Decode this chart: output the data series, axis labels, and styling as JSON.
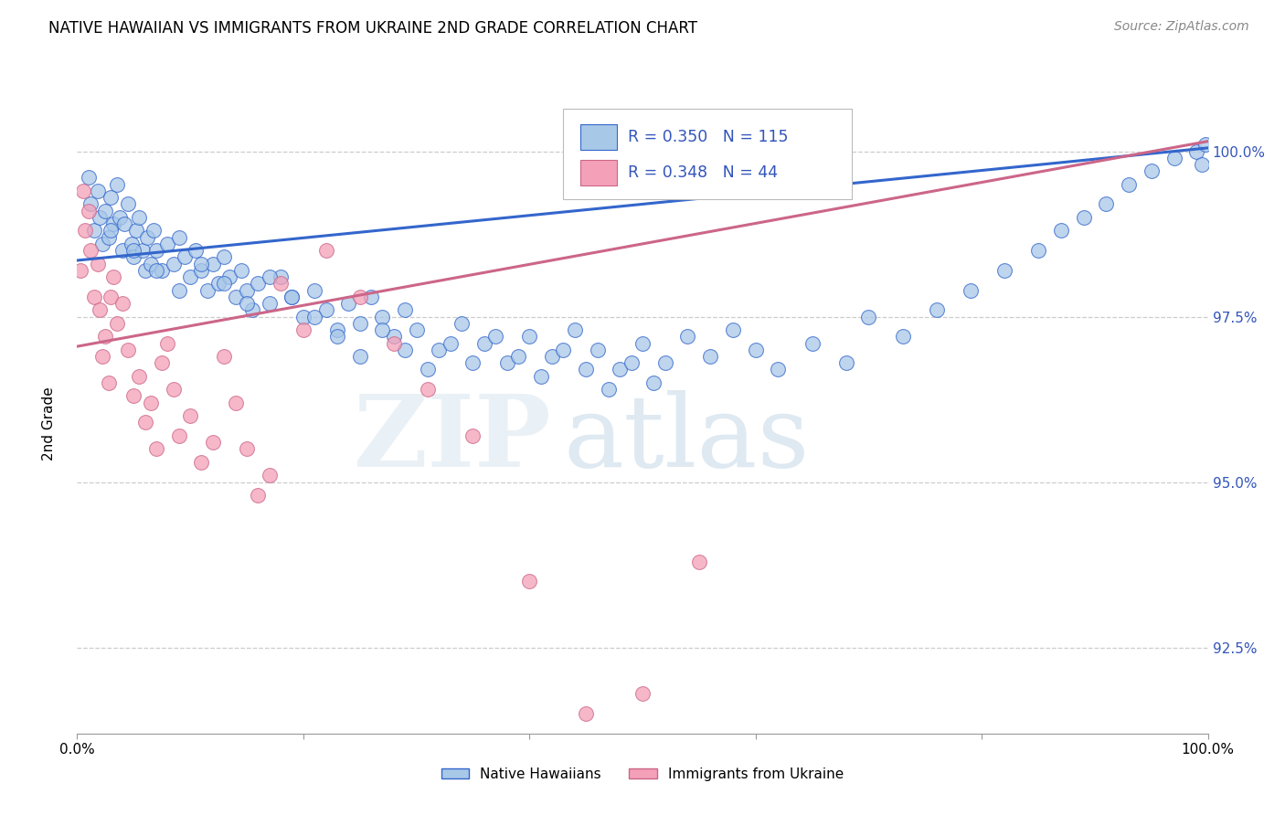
{
  "title": "NATIVE HAWAIIAN VS IMMIGRANTS FROM UKRAINE 2ND GRADE CORRELATION CHART",
  "source": "Source: ZipAtlas.com",
  "ylabel": "2nd Grade",
  "xlim": [
    0,
    100
  ],
  "ylim": [
    91.2,
    101.3
  ],
  "yticks": [
    92.5,
    95.0,
    97.5,
    100.0
  ],
  "xticks": [
    0,
    20,
    40,
    60,
    80,
    100
  ],
  "xtick_labels": [
    "0.0%",
    "",
    "",
    "",
    "",
    "100.0%"
  ],
  "ytick_labels": [
    "92.5%",
    "95.0%",
    "97.5%",
    "100.0%"
  ],
  "blue_R": 0.35,
  "blue_N": 115,
  "pink_R": 0.348,
  "pink_N": 44,
  "blue_color": "#a8c8e8",
  "pink_color": "#f4a0b8",
  "blue_line_color": "#3366cc",
  "pink_line_color": "#cc6688",
  "legend_label_blue": "Native Hawaiians",
  "legend_label_pink": "Immigrants from Ukraine",
  "blue_line_x0": 0,
  "blue_line_x1": 100,
  "blue_line_y0": 98.35,
  "blue_line_y1": 100.05,
  "pink_line_x0": 0,
  "pink_line_x1": 100,
  "pink_line_y0": 97.05,
  "pink_line_y1": 100.15,
  "blue_pts_x": [
    1.0,
    1.2,
    1.5,
    1.8,
    2.0,
    2.2,
    2.5,
    2.8,
    3.0,
    3.2,
    3.5,
    3.8,
    4.0,
    4.2,
    4.5,
    4.8,
    5.0,
    5.2,
    5.5,
    5.8,
    6.0,
    6.2,
    6.5,
    6.8,
    7.0,
    7.5,
    8.0,
    8.5,
    9.0,
    9.5,
    10.0,
    10.5,
    11.0,
    11.5,
    12.0,
    12.5,
    13.0,
    13.5,
    14.0,
    14.5,
    15.0,
    15.5,
    16.0,
    17.0,
    18.0,
    19.0,
    20.0,
    21.0,
    22.0,
    23.0,
    24.0,
    25.0,
    26.0,
    27.0,
    28.0,
    29.0,
    30.0,
    32.0,
    34.0,
    36.0,
    38.0,
    40.0,
    42.0,
    44.0,
    46.0,
    48.0,
    50.0,
    52.0,
    54.0,
    56.0,
    58.0,
    60.0,
    62.0,
    65.0,
    68.0,
    70.0,
    73.0,
    76.0,
    79.0,
    82.0,
    85.0,
    87.0,
    89.0,
    91.0,
    93.0,
    95.0,
    97.0,
    99.0,
    99.5,
    99.8,
    3.0,
    5.0,
    7.0,
    9.0,
    11.0,
    13.0,
    15.0,
    17.0,
    19.0,
    21.0,
    23.0,
    25.0,
    27.0,
    29.0,
    31.0,
    33.0,
    35.0,
    37.0,
    39.0,
    41.0,
    43.0,
    45.0,
    47.0,
    49.0,
    51.0
  ],
  "blue_pts_y": [
    99.6,
    99.2,
    98.8,
    99.4,
    99.0,
    98.6,
    99.1,
    98.7,
    99.3,
    98.9,
    99.5,
    99.0,
    98.5,
    98.9,
    99.2,
    98.6,
    98.4,
    98.8,
    99.0,
    98.5,
    98.2,
    98.7,
    98.3,
    98.8,
    98.5,
    98.2,
    98.6,
    98.3,
    98.7,
    98.4,
    98.1,
    98.5,
    98.2,
    97.9,
    98.3,
    98.0,
    98.4,
    98.1,
    97.8,
    98.2,
    97.9,
    97.6,
    98.0,
    97.7,
    98.1,
    97.8,
    97.5,
    97.9,
    97.6,
    97.3,
    97.7,
    97.4,
    97.8,
    97.5,
    97.2,
    97.6,
    97.3,
    97.0,
    97.4,
    97.1,
    96.8,
    97.2,
    96.9,
    97.3,
    97.0,
    96.7,
    97.1,
    96.8,
    97.2,
    96.9,
    97.3,
    97.0,
    96.7,
    97.1,
    96.8,
    97.5,
    97.2,
    97.6,
    97.9,
    98.2,
    98.5,
    98.8,
    99.0,
    99.2,
    99.5,
    99.7,
    99.9,
    100.0,
    99.8,
    100.1,
    98.8,
    98.5,
    98.2,
    97.9,
    98.3,
    98.0,
    97.7,
    98.1,
    97.8,
    97.5,
    97.2,
    96.9,
    97.3,
    97.0,
    96.7,
    97.1,
    96.8,
    97.2,
    96.9,
    96.6,
    97.0,
    96.7,
    96.4,
    96.8,
    96.5
  ],
  "pink_pts_x": [
    0.3,
    0.5,
    0.7,
    1.0,
    1.2,
    1.5,
    1.8,
    2.0,
    2.2,
    2.5,
    2.8,
    3.0,
    3.2,
    3.5,
    4.0,
    4.5,
    5.0,
    5.5,
    6.0,
    6.5,
    7.0,
    7.5,
    8.0,
    8.5,
    9.0,
    10.0,
    11.0,
    12.0,
    13.0,
    14.0,
    15.0,
    16.0,
    17.0,
    18.0,
    20.0,
    22.0,
    25.0,
    28.0,
    31.0,
    35.0,
    40.0,
    45.0,
    50.0,
    55.0
  ],
  "pink_pts_y": [
    98.2,
    99.4,
    98.8,
    99.1,
    98.5,
    97.8,
    98.3,
    97.6,
    96.9,
    97.2,
    96.5,
    97.8,
    98.1,
    97.4,
    97.7,
    97.0,
    96.3,
    96.6,
    95.9,
    96.2,
    95.5,
    96.8,
    97.1,
    96.4,
    95.7,
    96.0,
    95.3,
    95.6,
    96.9,
    96.2,
    95.5,
    94.8,
    95.1,
    98.0,
    97.3,
    98.5,
    97.8,
    97.1,
    96.4,
    95.7,
    93.5,
    91.5,
    91.8,
    93.8
  ]
}
